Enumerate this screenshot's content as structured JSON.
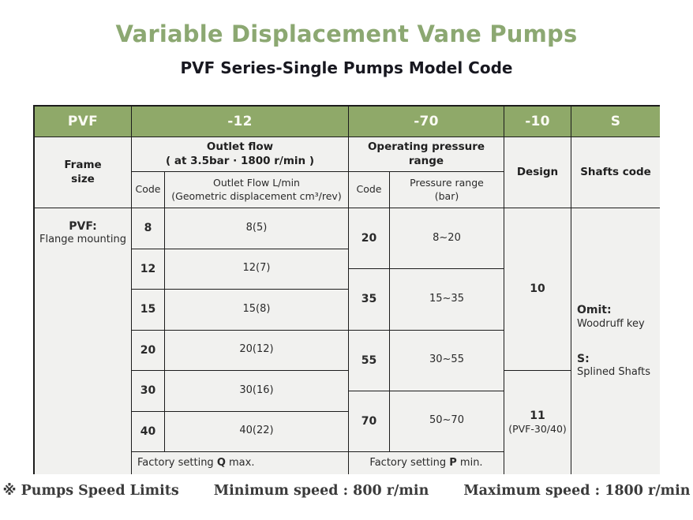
{
  "page": {
    "title": "Variable Displacement Vane Pumps",
    "subtitle": "PVF Series-Single Pumps Model Code"
  },
  "model_code": {
    "frame": "PVF",
    "flow": "-12",
    "pressure": "-70",
    "design": "-10",
    "shafts": "S"
  },
  "frame_column": {
    "header_line1": "Frame",
    "header_line2": "size",
    "type_code": "PVF:",
    "type_desc": "Flange mounting"
  },
  "flow_section": {
    "header": "Outlet flow",
    "header_note": "( at 3.5bar · 1800 r/min )",
    "code_header": "Code",
    "value_header_line1": "Outlet Flow L/min",
    "value_header_line2": "(Geometric displacement cm³/rev)",
    "rows": [
      {
        "code": "8",
        "value": "8(5)"
      },
      {
        "code": "12",
        "value": "12(7)"
      },
      {
        "code": "15",
        "value": "15(8)"
      },
      {
        "code": "20",
        "value": "20(12)"
      },
      {
        "code": "30",
        "value": "30(16)"
      },
      {
        "code": "40",
        "value": "40(22)"
      }
    ],
    "factory": {
      "prefix": "Factory setting ",
      "emphasis": "Q",
      "suffix": " max."
    }
  },
  "pressure_section": {
    "header": "Operating pressure range",
    "code_header": "Code",
    "value_header_line1": "Pressure range",
    "value_header_line2": "(bar)",
    "rows": [
      {
        "code": "20",
        "range": "8~20"
      },
      {
        "code": "35",
        "range": "15~35"
      },
      {
        "code": "55",
        "range": "30~55"
      },
      {
        "code": "70",
        "range": "50~70"
      }
    ],
    "factory": {
      "prefix": "Factory setting ",
      "emphasis": "P",
      "suffix": " min."
    }
  },
  "design_column": {
    "header": "Design",
    "option1_code": "10",
    "option2_code": "11",
    "option2_note": "(PVF-30/40)"
  },
  "shafts_column": {
    "header": "Shafts code",
    "option1_code": "Omit:",
    "option1_desc": "Woodruff key",
    "option2_code": "S:",
    "option2_desc": "Splined Shafts"
  },
  "footer": {
    "mark": "※",
    "label": "Pumps Speed Limits",
    "min_speed": "Minimum speed : 800 r/min",
    "max_speed": "Maximum speed : 1800 r/min"
  },
  "colors": {
    "header_green": "#8fa969",
    "title_green": "#8ca872",
    "cell_background": "#f1f1ef",
    "border": "#1c1c1c"
  }
}
